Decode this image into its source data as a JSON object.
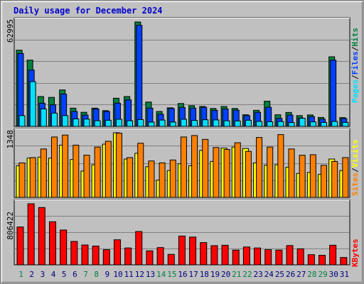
{
  "title": "Daily usage for December 2024",
  "colors": {
    "hits": "#008040",
    "files": "#0040ff",
    "pages": "#00e0ff",
    "visits": "#ffff00",
    "sites": "#ff8000",
    "kbytes": "#ff0000",
    "weekend_day": "#008040",
    "weekday": "#000080",
    "panel_bg": "#c0c0c0"
  },
  "chart_data": [
    {
      "type": "bar",
      "title": "Daily usage for December 2024",
      "x_days": [
        "1",
        "2",
        "3",
        "4",
        "5",
        "6",
        "7",
        "8",
        "9",
        "10",
        "11",
        "12",
        "13",
        "14",
        "15",
        "16",
        "17",
        "18",
        "19",
        "20",
        "21",
        "22",
        "23",
        "24",
        "25",
        "26",
        "27",
        "28",
        "29",
        "30",
        "31"
      ],
      "weekend_days": [
        "1",
        "7",
        "8",
        "14",
        "15",
        "21",
        "22",
        "28",
        "29"
      ],
      "y_max_label": "62995",
      "ymax": 62995,
      "series_labels": [
        "Pages",
        "Files",
        "Hits"
      ],
      "series": [
        {
          "name": "Hits",
          "values": [
            46000,
            40000,
            18000,
            17500,
            22000,
            11000,
            8500,
            11000,
            9500,
            17000,
            18000,
            62995,
            14700,
            9000,
            11200,
            13800,
            12500,
            12000,
            10800,
            12000,
            10800,
            7000,
            9700,
            15200,
            7000,
            8400,
            6500,
            6900,
            5400,
            42000,
            5300
          ]
        },
        {
          "name": "Files",
          "values": [
            44000,
            34000,
            14000,
            13000,
            19500,
            9000,
            6800,
            10500,
            9000,
            14000,
            16000,
            61000,
            11000,
            7300,
            10800,
            11400,
            11000,
            11500,
            9700,
            10500,
            9800,
            6500,
            8500,
            11500,
            4800,
            6800,
            5000,
            5900,
            4400,
            40000,
            4700
          ]
        },
        {
          "name": "Pages",
          "values": [
            6500,
            27000,
            10500,
            8000,
            6500,
            4500,
            4400,
            3400,
            3700,
            4300,
            3400,
            4100,
            2600,
            3800,
            2600,
            4300,
            3600,
            4000,
            3900,
            3400,
            3300,
            3700,
            3000,
            2800,
            2900,
            2300,
            4900,
            2700,
            2400,
            3000,
            2400
          ]
        }
      ]
    },
    {
      "type": "bar",
      "y_max_label": "1348",
      "ymax": 1348,
      "series_labels": [
        "Sites",
        "Visits"
      ],
      "series": [
        {
          "name": "Visits",
          "values": [
            660,
            820,
            840,
            820,
            1090,
            790,
            550,
            680,
            1110,
            1348,
            800,
            920,
            640,
            360,
            560,
            700,
            660,
            980,
            750,
            1030,
            1050,
            1020,
            720,
            670,
            680,
            630,
            500,
            520,
            480,
            800,
            560
          ]
        },
        {
          "name": "Sites",
          "values": [
            720,
            830,
            1010,
            1260,
            1300,
            1090,
            880,
            1050,
            1170,
            1340,
            830,
            1130,
            760,
            720,
            780,
            1260,
            1290,
            1210,
            1040,
            1000,
            1140,
            960,
            1250,
            1050,
            1310,
            1010,
            880,
            890,
            670,
            750,
            830
          ]
        }
      ]
    },
    {
      "type": "bar",
      "y_max_label": "806422",
      "ymax": 806422,
      "series_labels": [
        "KBytes"
      ],
      "series": [
        {
          "name": "KBytes",
          "values": [
            500000,
            806422,
            757000,
            569000,
            460000,
            309000,
            262000,
            248000,
            200000,
            331000,
            223000,
            440000,
            185000,
            228000,
            138000,
            380000,
            367000,
            294000,
            253000,
            259000,
            195000,
            236000,
            223000,
            200000,
            195000,
            255000,
            212000,
            134000,
            126000,
            259000,
            97000
          ]
        }
      ]
    }
  ]
}
